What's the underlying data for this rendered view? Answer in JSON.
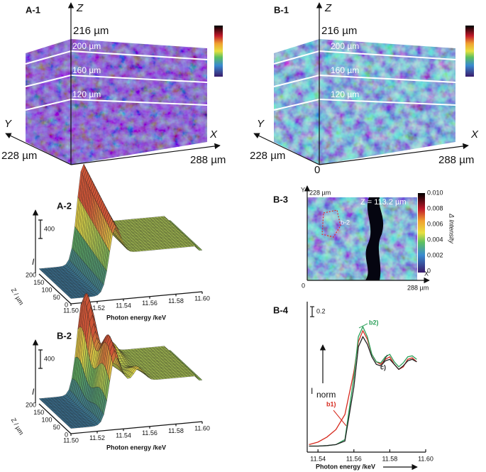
{
  "panels": {
    "a1": {
      "label": "A-1",
      "axes": [
        "Z",
        "Y",
        "X"
      ],
      "dims": [
        "216 µm",
        "228 µm",
        "288 µm"
      ],
      "levels": [
        "200 µm",
        "160 µm",
        "120 µm"
      ]
    },
    "b1": {
      "label": "B-1",
      "axes": [
        "Z",
        "Y",
        "X"
      ],
      "dims": [
        "216 µm",
        "228 µm",
        "288 µm"
      ],
      "levels": [
        "200 µm",
        "160 µm",
        "120 µm"
      ],
      "origin": "0"
    },
    "a2": {
      "label": "A-2",
      "y_label": "I",
      "scale": "400",
      "z_label": "Z / µm",
      "z_ticks": [
        "200",
        "150",
        "100",
        "50",
        "0"
      ],
      "x_label": "Photon energy /keV",
      "x_ticks": [
        "11.50",
        "11.52",
        "11.54",
        "11.56",
        "11.58",
        "11.60"
      ]
    },
    "b2": {
      "label": "B-2",
      "y_label": "I",
      "scale": "400",
      "z_label": "Z / µm",
      "z_ticks": [
        "200",
        "150",
        "100",
        "50",
        "0"
      ],
      "x_label": "Photon energy /keV",
      "x_ticks": [
        "11.50",
        "11.52",
        "11.54",
        "11.56",
        "11.58",
        "11.60"
      ]
    },
    "b3": {
      "label": "B-3",
      "y": "Y",
      "x": "X",
      "origin": "0",
      "top": "228 µm",
      "right": "288 µm",
      "z": "Z = 113.2 µm",
      "roi": "b-2",
      "colorbar_label": "Δ Intensity",
      "colorbar_ticks": [
        "0.010",
        "0.008",
        "0.006",
        "0.004",
        "0.002",
        "0"
      ]
    }
  },
  "chart_data": {
    "type": "line",
    "label": "B-4",
    "x_label": "Photon energy /keV",
    "y_label": "I",
    "y_label_sub": "norm",
    "scale_bar": 0.2,
    "x": [
      11.535,
      11.54,
      11.545,
      11.55,
      11.555,
      11.56,
      11.5625,
      11.565,
      11.5675,
      11.57,
      11.5725,
      11.575,
      11.5775,
      11.58,
      11.5825,
      11.585,
      11.5875,
      11.59,
      11.5925,
      11.595
    ],
    "series": [
      {
        "name": "b1)",
        "color": "#d62a1e",
        "values": [
          0.15,
          0.2,
          0.3,
          0.45,
          0.75,
          1.6,
          2.2,
          2.42,
          2.25,
          1.95,
          1.8,
          1.75,
          1.85,
          1.9,
          1.75,
          1.65,
          1.7,
          1.85,
          1.88,
          1.8
        ]
      },
      {
        "name": "b2)",
        "color": "#2ca05a",
        "values": [
          0.12,
          0.12,
          0.13,
          0.15,
          0.25,
          1.5,
          2.3,
          2.5,
          2.3,
          1.95,
          1.8,
          1.78,
          1.9,
          1.95,
          1.8,
          1.7,
          1.78,
          1.9,
          1.92,
          1.85
        ]
      },
      {
        "name": "c)",
        "color": "#222222",
        "values": [
          0.12,
          0.12,
          0.13,
          0.15,
          0.22,
          1.3,
          2.1,
          2.3,
          2.15,
          1.9,
          1.75,
          1.72,
          1.82,
          1.85,
          1.75,
          1.65,
          1.72,
          1.82,
          1.85,
          1.8
        ]
      }
    ],
    "xlim": [
      11.534,
      11.6
    ],
    "ylim": [
      0,
      3
    ],
    "xticks": [
      11.54,
      11.56,
      11.58,
      {
        "value": 11.6,
        "label": "11.60"
      }
    ]
  }
}
